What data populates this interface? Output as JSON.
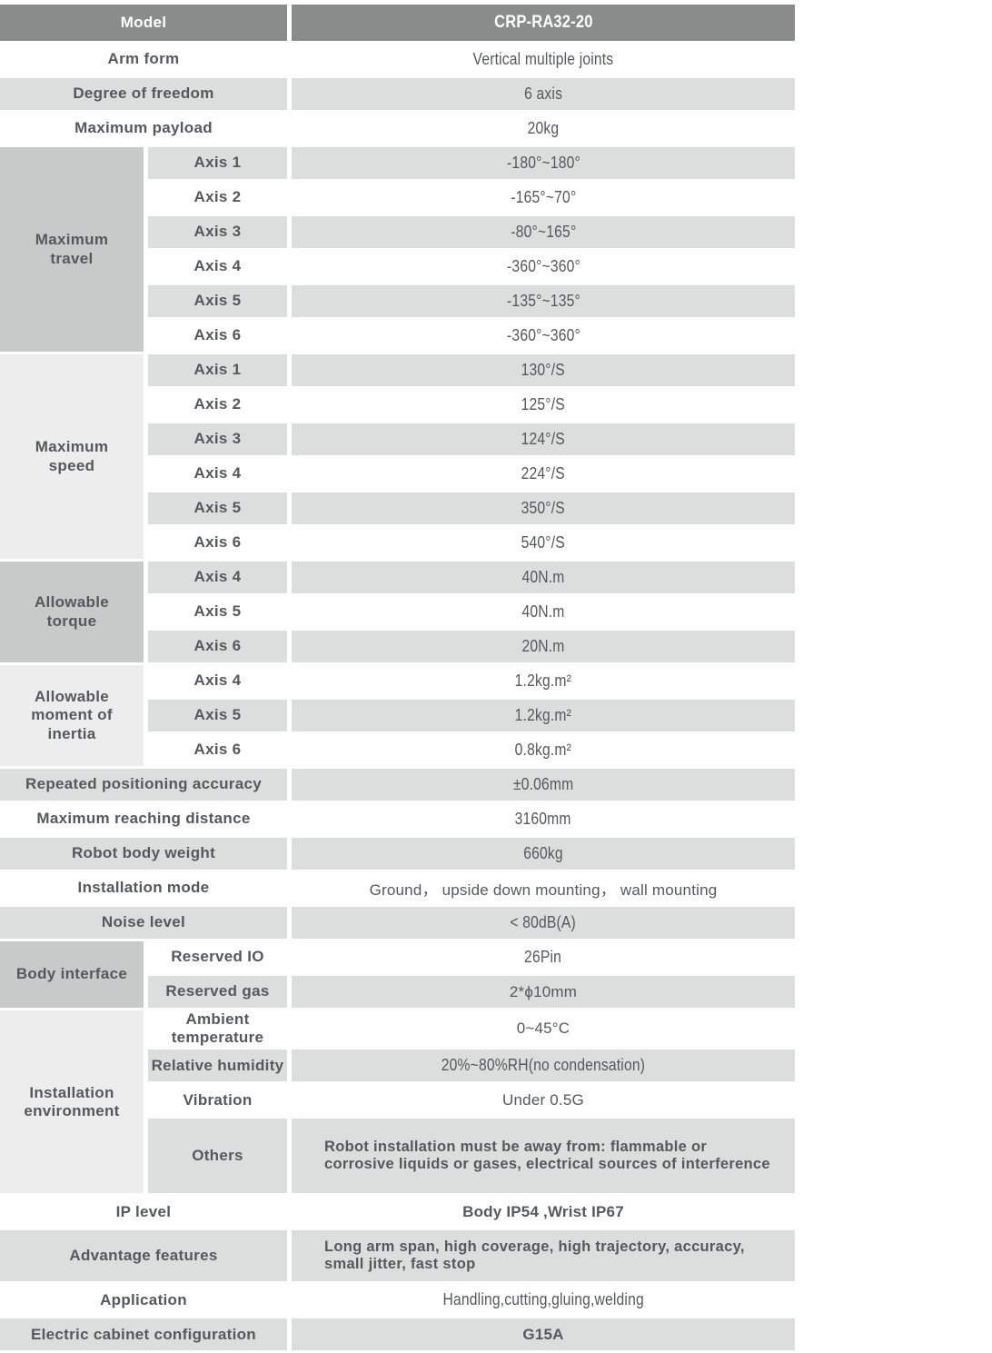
{
  "colors": {
    "header_bg": "#8a8b8b",
    "header_text": "#ffffff",
    "row_gray": "#dcdddd",
    "group_dark": "#c8c9c9",
    "group_light": "#ededee",
    "text": "#57585a"
  },
  "header": {
    "label": "Model",
    "value": "CRP-RA32-20"
  },
  "rows": {
    "arm_form": {
      "label": "Arm form",
      "value": "Vertical multiple joints"
    },
    "degree_of_freedom": {
      "label": "Degree of freedom",
      "value": "6 axis"
    },
    "maximum_payload": {
      "label": "Maximum payload",
      "value": "20kg"
    },
    "repeated_positioning_accuracy": {
      "label": "Repeated positioning accuracy",
      "value": "±0.06mm"
    },
    "maximum_reaching_distance": {
      "label": "Maximum reaching distance",
      "value": "3160mm"
    },
    "robot_body_weight": {
      "label": "Robot body weight",
      "value": "660kg"
    },
    "installation_mode": {
      "label": "Installation mode",
      "value": "Ground， upside down mounting， wall mounting"
    },
    "noise_level": {
      "label": "Noise level",
      "value": "< 80dB(A)"
    },
    "ip_level": {
      "label": "IP level",
      "value": "Body IP54 ,Wrist IP67"
    },
    "advantage_features": {
      "label": "Advantage features",
      "value": "Long arm span, high coverage, high trajectory, accuracy, small jitter, fast stop"
    },
    "application": {
      "label": "Application",
      "value": "Handling,cutting,gluing,welding"
    },
    "electric_cabinet_configuration": {
      "label": "Electric cabinet configuration",
      "value": "G15A"
    }
  },
  "groups": {
    "maximum_travel": {
      "label": "Maximum travel",
      "axes": [
        {
          "label": "Axis 1",
          "value": "-180°~180°"
        },
        {
          "label": "Axis 2",
          "value": "-165°~70°"
        },
        {
          "label": "Axis 3",
          "value": "-80°~165°"
        },
        {
          "label": "Axis 4",
          "value": "-360°~360°"
        },
        {
          "label": "Axis 5",
          "value": "-135°~135°"
        },
        {
          "label": "Axis 6",
          "value": "-360°~360°"
        }
      ]
    },
    "maximum_speed": {
      "label": "Maximum speed",
      "axes": [
        {
          "label": "Axis 1",
          "value": "130°/S"
        },
        {
          "label": "Axis 2",
          "value": "125°/S"
        },
        {
          "label": "Axis 3",
          "value": "124°/S"
        },
        {
          "label": "Axis 4",
          "value": "224°/S"
        },
        {
          "label": "Axis 5",
          "value": "350°/S"
        },
        {
          "label": "Axis 6",
          "value": "540°/S"
        }
      ]
    },
    "allowable_torque": {
      "label": "Allowable torque",
      "axes": [
        {
          "label": "Axis 4",
          "value": "40N.m"
        },
        {
          "label": "Axis 5",
          "value": "40N.m"
        },
        {
          "label": "Axis 6",
          "value": "20N.m"
        }
      ]
    },
    "allowable_moment_of_inertia": {
      "label": "Allowable moment of inertia",
      "axes": [
        {
          "label": "Axis 4",
          "value": "1.2kg.m²"
        },
        {
          "label": "Axis 5",
          "value": "1.2kg.m²"
        },
        {
          "label": "Axis 6",
          "value": "0.8kg.m²"
        }
      ]
    },
    "body_interface": {
      "label": "Body interface",
      "items": [
        {
          "label": "Reserved IO",
          "value": "26Pin"
        },
        {
          "label": "Reserved gas",
          "value": "2*ϕ10mm"
        }
      ]
    },
    "installation_environment": {
      "label": "Installation environment",
      "items": [
        {
          "label": "Ambient temperature",
          "value": "0~45°C"
        },
        {
          "label": "Relative humidity",
          "value": "20%~80%RH(no condensation)"
        },
        {
          "label": "Vibration",
          "value": "Under 0.5G"
        },
        {
          "label": "Others",
          "value": "Robot installation must be away from: flammable or corrosive liquids or gases, electrical sources of interference"
        }
      ]
    }
  }
}
